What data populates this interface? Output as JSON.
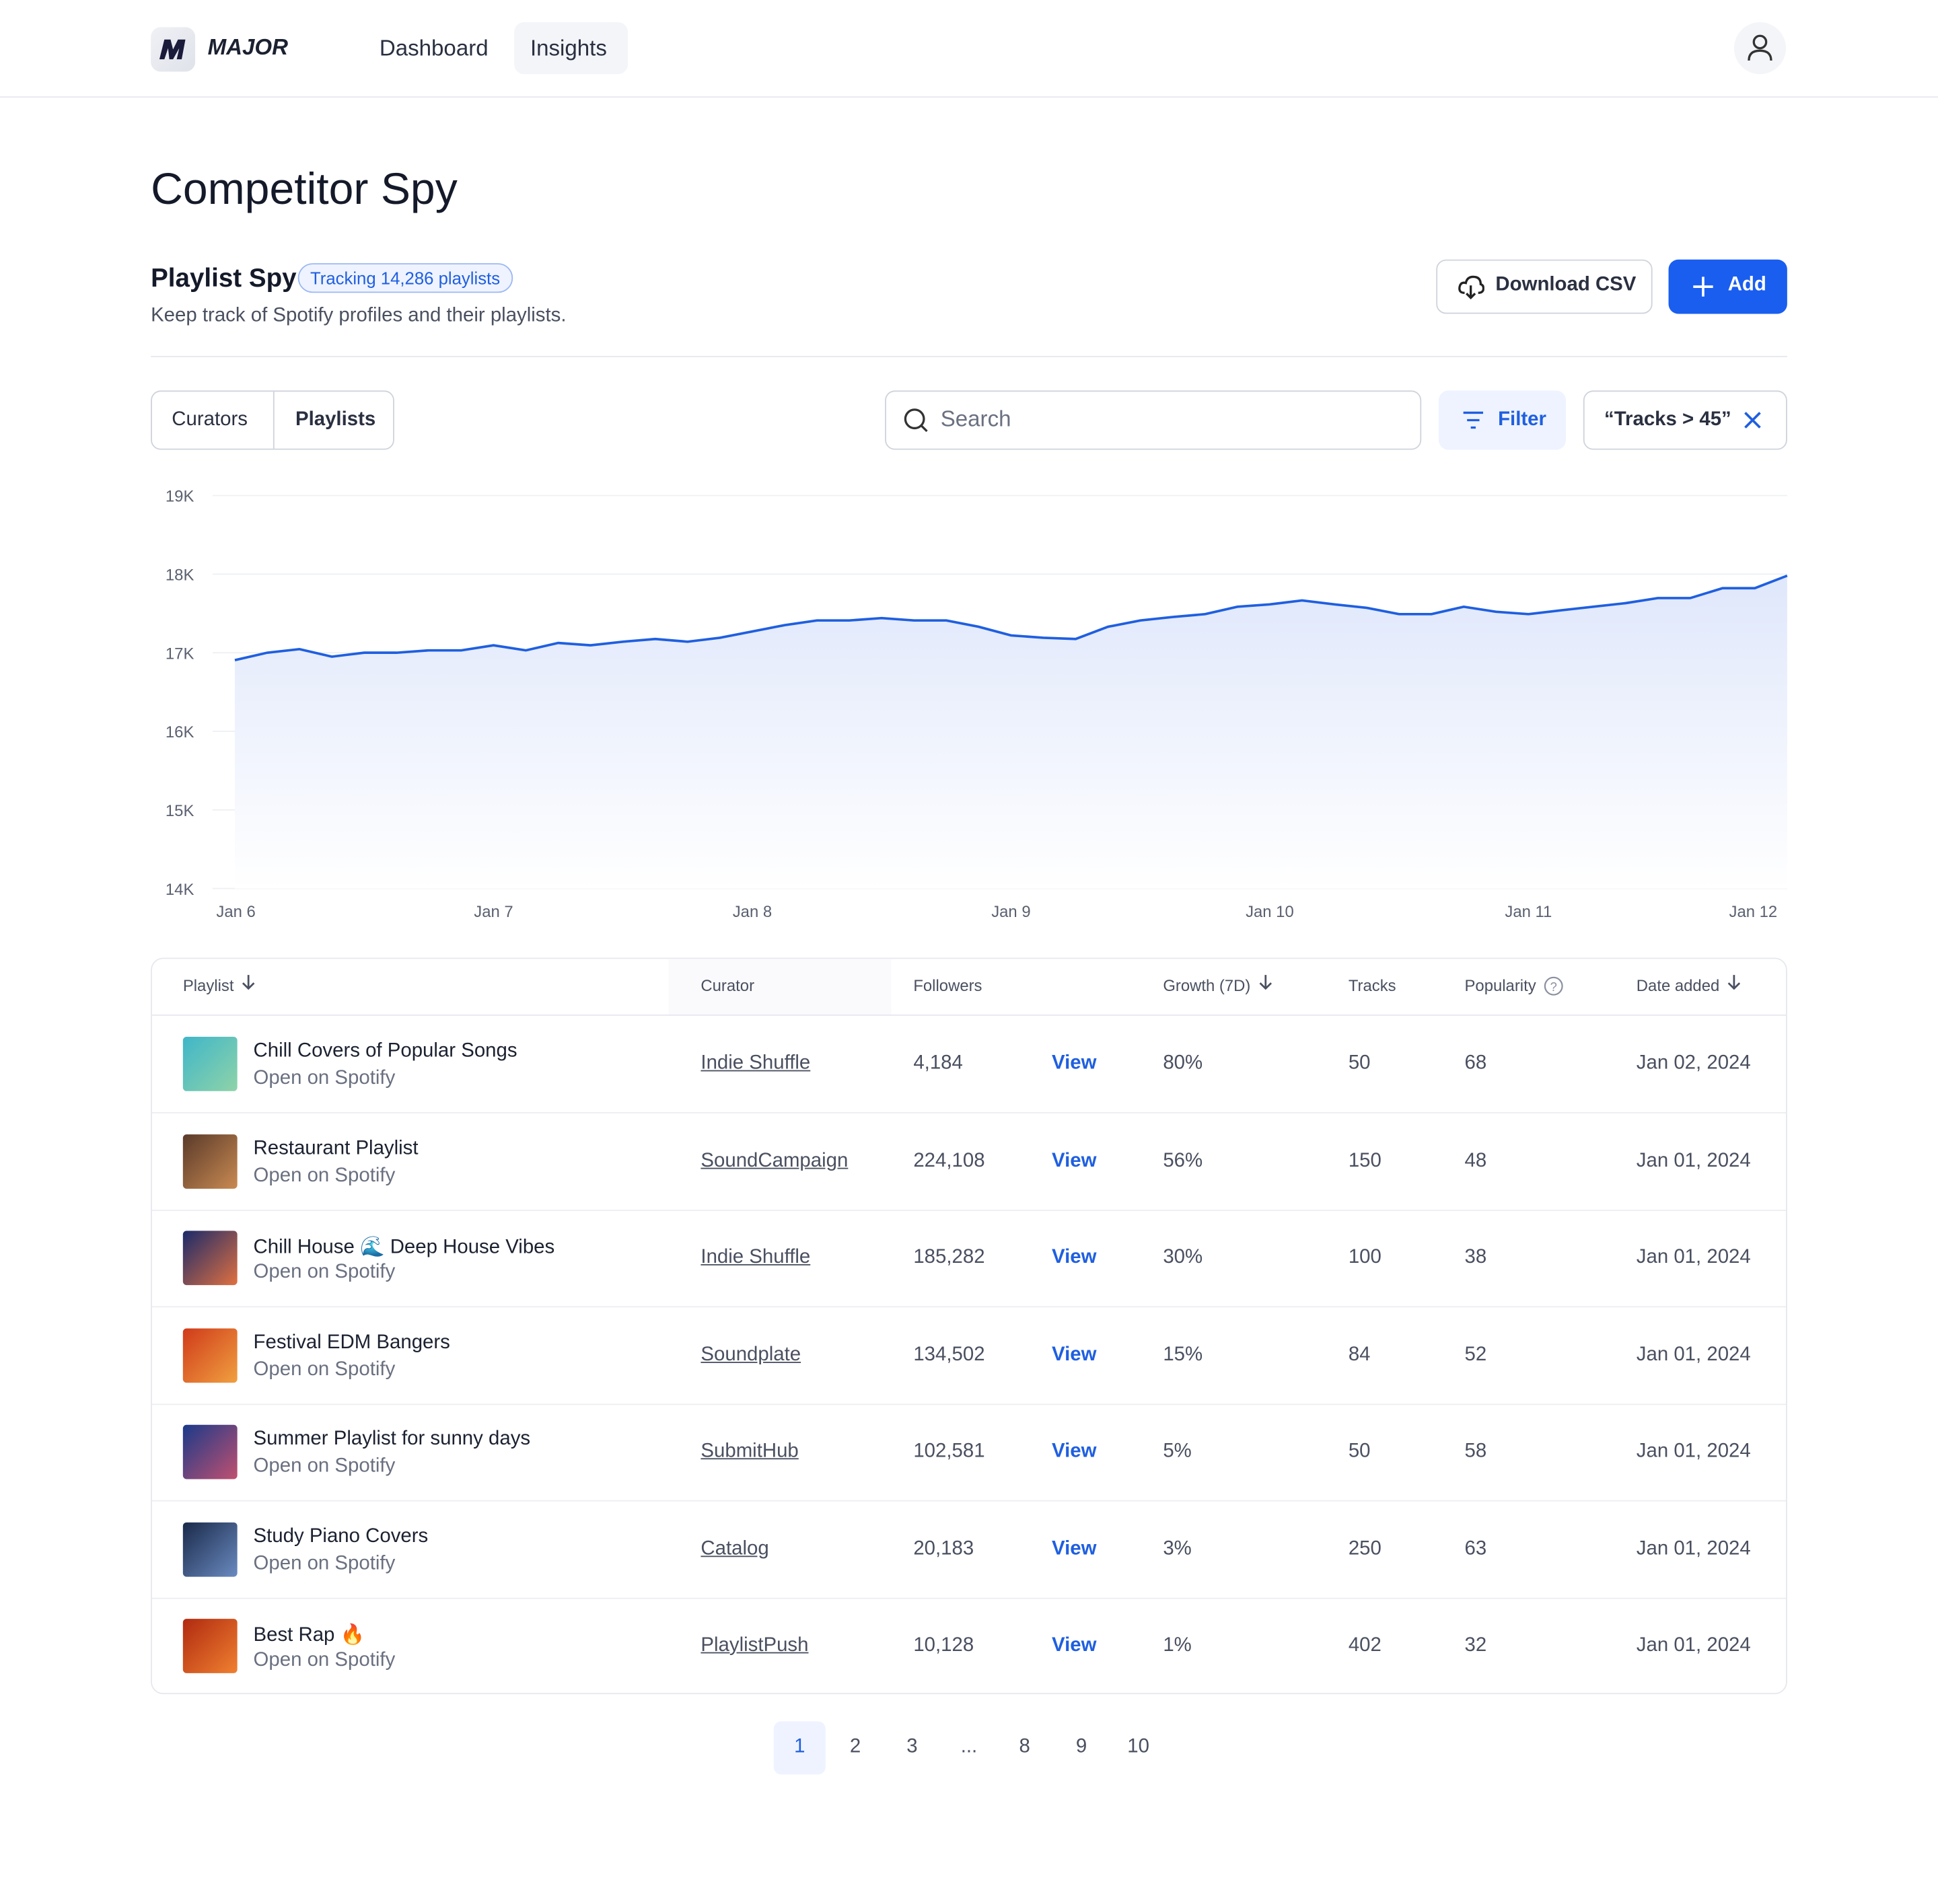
{
  "nav": {
    "brand": "MAJOR",
    "links": [
      "Dashboard",
      "Insights"
    ]
  },
  "page": {
    "title": "Competitor Spy",
    "section_title": "Playlist Spy",
    "badge": "Tracking 14,286 playlists",
    "subtitle": "Keep track of Spotify profiles and their playlists.",
    "download_button": "Download CSV",
    "add_button": "Add"
  },
  "toolbar": {
    "tabs": [
      "Curators",
      "Playlists"
    ],
    "search_placeholder": "Search",
    "filter_button": "Filter",
    "filter_chip": "“Tracks > 45”"
  },
  "chart_data": {
    "type": "line",
    "color": "#1f5fe0",
    "grid": true,
    "categories": [
      "Jan 6",
      null,
      null,
      null,
      null,
      null,
      null,
      null,
      "Jan 7",
      null,
      null,
      null,
      null,
      null,
      null,
      null,
      "Jan 8",
      null,
      null,
      null,
      null,
      null,
      null,
      null,
      "Jan 9",
      null,
      null,
      null,
      null,
      null,
      null,
      null,
      "Jan 10",
      null,
      null,
      null,
      null,
      null,
      null,
      null,
      "Jan 11",
      null,
      null,
      null,
      null,
      null,
      null,
      null,
      "Jan 12"
    ],
    "values": [
      16905,
      17000,
      17045,
      16950,
      17000,
      17000,
      17030,
      17030,
      17095,
      17030,
      17125,
      17095,
      17140,
      17175,
      17140,
      17190,
      17270,
      17350,
      17410,
      17410,
      17440,
      17410,
      17410,
      17330,
      17220,
      17190,
      17175,
      17330,
      17410,
      17455,
      17490,
      17585,
      17615,
      17665,
      17615,
      17570,
      17490,
      17490,
      17585,
      17520,
      17490,
      17540,
      17585,
      17630,
      17695,
      17695,
      17820,
      17820,
      17980
    ],
    "ylim": [
      14000,
      19000
    ],
    "yticks": [
      {
        "value": 14000,
        "label": "14K"
      },
      {
        "value": 15000,
        "label": "15K"
      },
      {
        "value": 16000,
        "label": "16K"
      },
      {
        "value": 17000,
        "label": "17K"
      },
      {
        "value": 18000,
        "label": "18K"
      },
      {
        "value": 19000,
        "label": "19K"
      }
    ]
  },
  "table": {
    "columns": [
      "Playlist",
      "Curator",
      "Followers",
      "Growth (7D)",
      "Tracks",
      "Popularity",
      "Date added"
    ],
    "rows": [
      [
        "Chill Covers of Popular Songs",
        "Open on Spotify",
        "Indie Shuffle",
        "4,184",
        "View",
        "80%",
        "50",
        "68",
        "Jan 02, 2024"
      ],
      [
        "Restaurant Playlist",
        "Open on Spotify",
        "SoundCampaign",
        "224,108",
        "View",
        "56%",
        "150",
        "48",
        "Jan 01, 2024"
      ],
      [
        "Chill House 🌊 Deep House Vibes",
        "Open on Spotify",
        "Indie Shuffle",
        "185,282",
        "View",
        "30%",
        "100",
        "38",
        "Jan 01, 2024"
      ],
      [
        "Festival EDM Bangers",
        "Open on Spotify",
        "Soundplate",
        "134,502",
        "View",
        "15%",
        "84",
        "52",
        "Jan 01, 2024"
      ],
      [
        "Summer Playlist for sunny days",
        "Open on Spotify",
        "SubmitHub",
        "102,581",
        "View",
        "5%",
        "50",
        "58",
        "Jan 01, 2024"
      ],
      [
        "Study Piano Covers",
        "Open on Spotify",
        "Catalog",
        "20,183",
        "View",
        "3%",
        "250",
        "63",
        "Jan 01, 2024"
      ],
      [
        "Best Rap 🔥",
        "Open on Spotify",
        "PlaylistPush",
        "10,128",
        "View",
        "1%",
        "402",
        "32",
        "Jan 01, 2024"
      ]
    ]
  },
  "pagination": [
    "1",
    "2",
    "3",
    "...",
    "8",
    "9",
    "10"
  ]
}
